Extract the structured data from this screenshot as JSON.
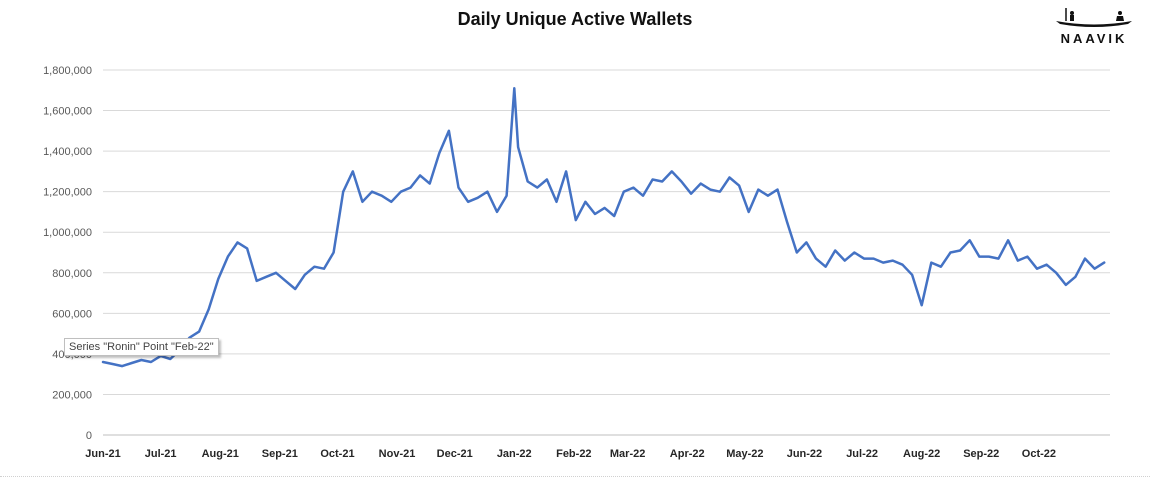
{
  "chart_data": {
    "type": "line",
    "title": "Daily Unique Active Wallets",
    "xlabel": "",
    "ylabel": "",
    "ylim": [
      0,
      1800000
    ],
    "y_ticks": [
      0,
      200000,
      400000,
      600000,
      800000,
      1000000,
      1200000,
      1400000,
      1600000,
      1800000
    ],
    "y_tick_labels": [
      "0",
      "200,000",
      "400,000",
      "600,000",
      "800,000",
      "1,000,000",
      "1,200,000",
      "1,400,000",
      "1,600,000",
      "1,800,000"
    ],
    "x_tick_labels": [
      "Jun-21",
      "Jul-21",
      "Aug-21",
      "Sep-21",
      "Oct-21",
      "Nov-21",
      "Dec-21",
      "Jan-22",
      "Feb-22",
      "Mar-22",
      "Apr-22",
      "May-22",
      "Jun-22",
      "Jul-22",
      "Aug-22",
      "Sep-22",
      "Oct-22"
    ],
    "grid": true,
    "legend": "none",
    "color": "#4472C4",
    "series": [
      {
        "x": [
          "2021-06-01",
          "2021-06-06",
          "2021-06-11",
          "2021-06-16",
          "2021-06-21",
          "2021-06-26",
          "2021-07-01",
          "2021-07-06",
          "2021-07-11",
          "2021-07-16",
          "2021-07-21",
          "2021-07-26",
          "2021-07-31",
          "2021-08-05",
          "2021-08-10",
          "2021-08-15",
          "2021-08-20",
          "2021-08-25",
          "2021-08-30",
          "2021-09-04",
          "2021-09-09",
          "2021-09-14",
          "2021-09-19",
          "2021-09-24",
          "2021-09-29",
          "2021-10-04",
          "2021-10-09",
          "2021-10-14",
          "2021-10-19",
          "2021-10-24",
          "2021-10-29",
          "2021-11-03",
          "2021-11-08",
          "2021-11-13",
          "2021-11-18",
          "2021-11-23",
          "2021-11-28",
          "2021-12-03",
          "2021-12-08",
          "2021-12-13",
          "2021-12-18",
          "2021-12-23",
          "2021-12-28",
          "2022-01-01",
          "2022-01-03",
          "2022-01-08",
          "2022-01-13",
          "2022-01-18",
          "2022-01-23",
          "2022-01-28",
          "2022-02-02",
          "2022-02-07",
          "2022-02-12",
          "2022-02-17",
          "2022-02-22",
          "2022-02-27",
          "2022-03-04",
          "2022-03-09",
          "2022-03-14",
          "2022-03-19",
          "2022-03-24",
          "2022-03-29",
          "2022-04-03",
          "2022-04-08",
          "2022-04-13",
          "2022-04-18",
          "2022-04-23",
          "2022-04-28",
          "2022-05-03",
          "2022-05-08",
          "2022-05-13",
          "2022-05-18",
          "2022-05-23",
          "2022-05-28",
          "2022-06-02",
          "2022-06-07",
          "2022-06-12",
          "2022-06-17",
          "2022-06-22",
          "2022-06-27",
          "2022-07-02",
          "2022-07-07",
          "2022-07-12",
          "2022-07-17",
          "2022-07-22",
          "2022-07-27",
          "2022-08-01",
          "2022-08-06",
          "2022-08-11",
          "2022-08-16",
          "2022-08-21",
          "2022-08-26",
          "2022-08-31",
          "2022-09-05",
          "2022-09-10",
          "2022-09-15",
          "2022-09-20",
          "2022-09-25",
          "2022-09-30",
          "2022-10-05",
          "2022-10-10",
          "2022-10-15",
          "2022-10-20",
          "2022-10-25",
          "2022-10-30",
          "2022-11-04"
        ],
        "values": [
          360000,
          350000,
          340000,
          355000,
          370000,
          360000,
          390000,
          375000,
          420000,
          480000,
          510000,
          620000,
          770000,
          880000,
          950000,
          920000,
          760000,
          780000,
          800000,
          760000,
          720000,
          790000,
          830000,
          820000,
          900000,
          1200000,
          1300000,
          1150000,
          1200000,
          1180000,
          1150000,
          1200000,
          1220000,
          1280000,
          1240000,
          1390000,
          1500000,
          1220000,
          1150000,
          1170000,
          1200000,
          1100000,
          1180000,
          1710000,
          1420000,
          1250000,
          1220000,
          1260000,
          1150000,
          1300000,
          1060000,
          1150000,
          1090000,
          1120000,
          1080000,
          1200000,
          1220000,
          1180000,
          1260000,
          1250000,
          1300000,
          1250000,
          1190000,
          1240000,
          1210000,
          1200000,
          1270000,
          1230000,
          1100000,
          1210000,
          1180000,
          1210000,
          1050000,
          900000,
          950000,
          870000,
          830000,
          910000,
          860000,
          900000,
          870000,
          870000,
          850000,
          860000,
          840000,
          790000,
          640000,
          850000,
          830000,
          900000,
          910000,
          960000,
          880000,
          880000,
          870000,
          960000,
          860000,
          880000,
          820000,
          840000,
          800000,
          740000,
          780000,
          870000,
          820000,
          850000
        ]
      }
    ],
    "tooltip": "Series \"Ronin\" Point \"Feb-22\""
  },
  "logo": {
    "text": "NAAVIK"
  }
}
